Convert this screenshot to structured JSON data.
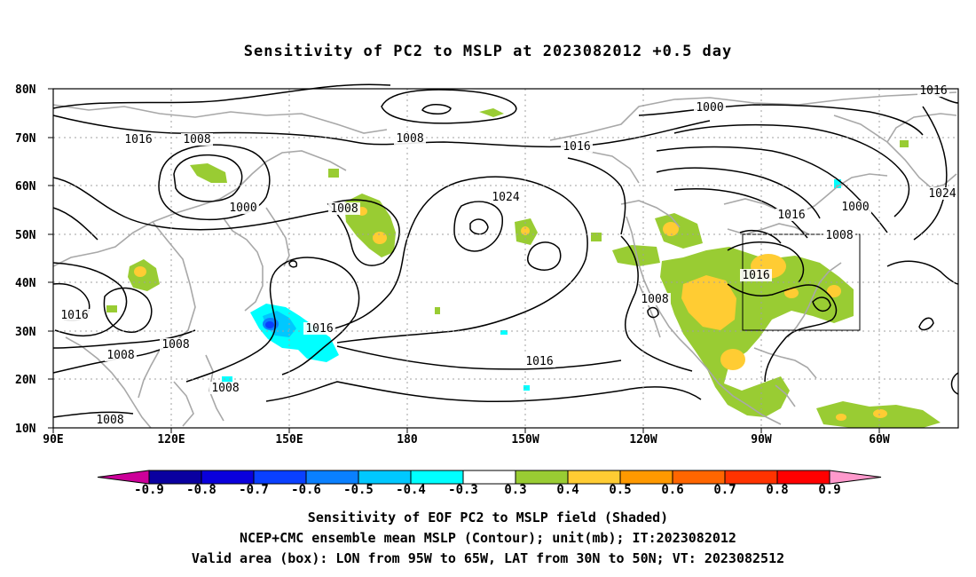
{
  "title": "Sensitivity of PC2 to MSLP at 2023082012 +0.5 day",
  "axes": {
    "lat_ticks": [
      "80N",
      "70N",
      "60N",
      "50N",
      "40N",
      "30N",
      "20N",
      "10N"
    ],
    "lon_ticks": [
      "90E",
      "120E",
      "150E",
      "180",
      "150W",
      "120W",
      "90W",
      "60W"
    ]
  },
  "colorbar": {
    "labels": [
      "-0.9",
      "-0.8",
      "-0.7",
      "-0.6",
      "-0.5",
      "-0.4",
      "-0.3",
      "0.3",
      "0.4",
      "0.5",
      "0.6",
      "0.7",
      "0.8",
      "0.9"
    ],
    "colors": [
      "#cc0099",
      "#0a00a0",
      "#0a00dc",
      "#0a40ff",
      "#0a80ff",
      "#00c8ff",
      "#00ffff",
      "#ffffff",
      "#99cc33",
      "#ffcc33",
      "#ff9900",
      "#ff6600",
      "#ff3300",
      "#ff0000",
      "#ff99cc"
    ]
  },
  "contour_labels": [
    {
      "text": "1016"
    },
    {
      "text": "1008"
    },
    {
      "text": "1000"
    },
    {
      "text": "1008"
    },
    {
      "text": "1016"
    },
    {
      "text": "1024"
    },
    {
      "text": "1008"
    },
    {
      "text": "1000"
    },
    {
      "text": "1016"
    },
    {
      "text": "1000"
    },
    {
      "text": "1008"
    },
    {
      "text": "1016"
    },
    {
      "text": "1024"
    },
    {
      "text": "1016"
    },
    {
      "text": "1016"
    },
    {
      "text": "1008"
    },
    {
      "text": "1008"
    },
    {
      "text": "1008"
    },
    {
      "text": "1008"
    },
    {
      "text": "1016"
    },
    {
      "text": "1016"
    },
    {
      "text": "1008"
    }
  ],
  "captions": [
    "Sensitivity of EOF PC2 to MSLP field (Shaded)",
    "NCEP+CMC ensemble mean MSLP (Contour); unit(mb); IT:2023082012",
    "Valid area (box): LON from 95W to 65W, LAT from 30N to 50N; VT: 2023082512"
  ],
  "valid_box": {
    "lon": [
      -95,
      -65
    ],
    "lat": [
      30,
      50
    ]
  }
}
